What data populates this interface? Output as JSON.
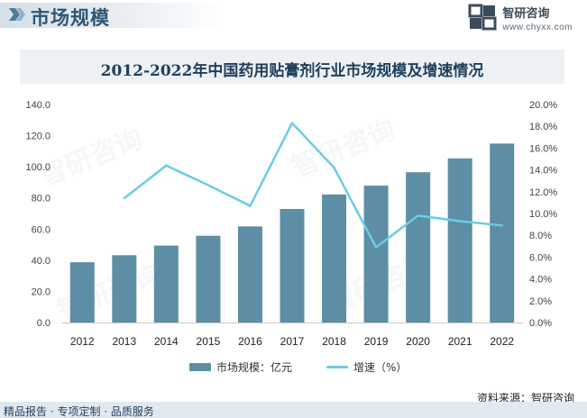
{
  "header": {
    "section_title": "市场规模",
    "brand_name": "智研咨询",
    "brand_url": "www.chyxx.com"
  },
  "colors": {
    "bar": "#5d8ea6",
    "line": "#6ccbe6",
    "title_bg": "#edf1f5",
    "footer_bg": "#e1e8ef"
  },
  "chart_data": {
    "type": "bar",
    "title": "2012-2022年中国药用贴膏剂行业市场规模及增速情况",
    "categories": [
      "2012",
      "2013",
      "2014",
      "2015",
      "2016",
      "2017",
      "2018",
      "2019",
      "2020",
      "2021",
      "2022"
    ],
    "series": [
      {
        "name": "市场规模：亿元",
        "type": "bar",
        "axis": "left",
        "values": [
          38.7,
          43.2,
          49.4,
          55.7,
          61.7,
          72.9,
          82.2,
          87.9,
          96.5,
          105.4,
          114.9
        ]
      },
      {
        "name": "增速（%）",
        "type": "line",
        "axis": "right",
        "values": [
          null,
          11.4,
          14.4,
          12.6,
          10.7,
          18.3,
          14.2,
          6.9,
          9.8,
          9.3,
          8.9
        ]
      }
    ],
    "y_left": {
      "min": 0,
      "max": 140,
      "step": 20,
      "ticks": [
        "0.0",
        "20.0",
        "40.0",
        "60.0",
        "80.0",
        "100.0",
        "120.0",
        "140.0"
      ]
    },
    "y_right": {
      "min": 0,
      "max": 20,
      "step": 2,
      "ticks": [
        "0.0%",
        "2.0%",
        "4.0%",
        "6.0%",
        "8.0%",
        "10.0%",
        "12.0%",
        "14.0%",
        "16.0%",
        "18.0%",
        "20.0%"
      ]
    },
    "grid": false,
    "legend_position": "bottom"
  },
  "source": "资料来源：智研咨询",
  "footer": "精品报告 · 专项定制 · 品质服务",
  "watermark": "智研咨询"
}
